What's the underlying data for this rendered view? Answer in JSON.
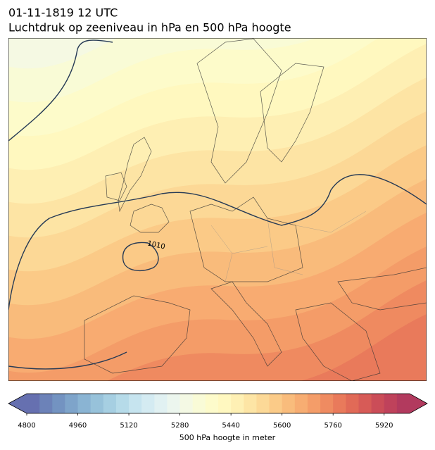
{
  "title": "01-11-1819 12 UTC",
  "subtitle": "Luchtdruk op zeeniveau in hPa en 500 hPa hoogte",
  "map": {
    "contour_labels": [
      "1010"
    ]
  },
  "colorbar": {
    "label": "500 hPa hoogte in meter",
    "lim": [
      4800,
      6000
    ],
    "ticks": [
      4800,
      4960,
      5120,
      5280,
      5440,
      5600,
      5760,
      5920
    ],
    "extend": "both",
    "colors": [
      "#6670b0",
      "#6c82b8",
      "#7393c1",
      "#7ea4ca",
      "#8ab4d3",
      "#97c2da",
      "#a6cfe2",
      "#b6dbe9",
      "#c6e4ef",
      "#d4ebf2",
      "#e1f1f2",
      "#ecf6ee",
      "#f4f9e4",
      "#f9fbd7",
      "#fdfbcb",
      "#fff8c0",
      "#fef0b4",
      "#fde5a5",
      "#fcd997",
      "#fbcb88",
      "#f9bc7c",
      "#f7ad72",
      "#f49d69",
      "#ef8b61",
      "#e97a5b",
      "#e16a57",
      "#d75b57",
      "#cb4d58",
      "#bf425b",
      "#b23a5e"
    ]
  }
}
